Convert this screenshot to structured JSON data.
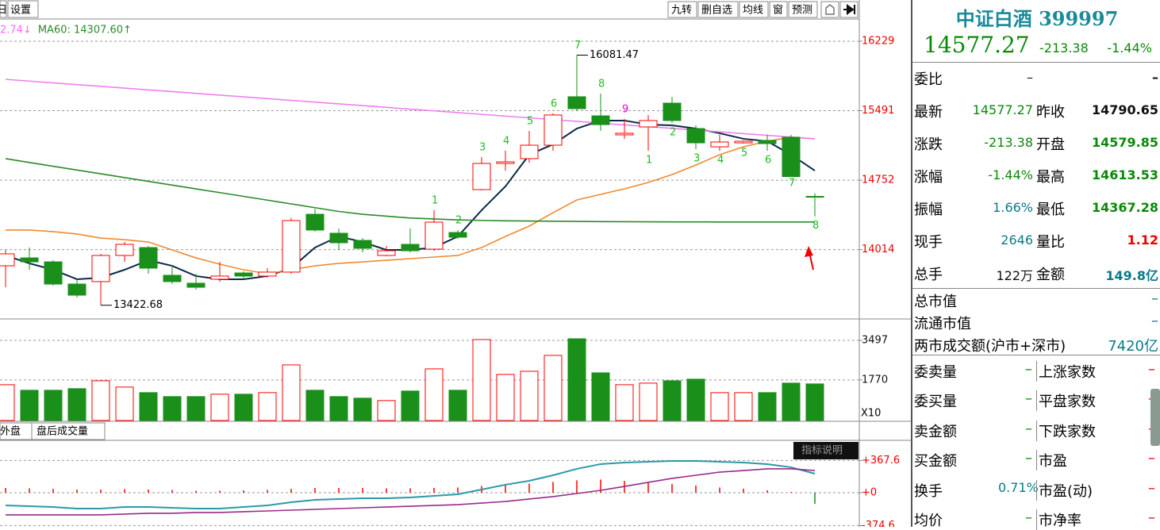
{
  "toolbar": {
    "left": [
      "日",
      "设置"
    ],
    "right": [
      "九转",
      "删自选",
      "均线",
      "窗",
      "预测"
    ]
  },
  "chart_data": [
    {
      "type": "candlestick",
      "legend": [
        {
          "text": "2.74↓",
          "color": "#ff66ff"
        },
        {
          "text": "MA60: 14307.60↑",
          "color": "#2a8a2a"
        }
      ],
      "up_color": "#ff0000",
      "down_color": "#1a8f1a",
      "ylim": [
        13294,
        16465
      ],
      "yticks": [
        16229,
        15491,
        14752,
        14014
      ],
      "grid": true,
      "ohlc": [
        [
          13842,
          14011,
          13614,
          13969
        ],
        [
          13926,
          14036,
          13800,
          13884
        ],
        [
          13884,
          13901,
          13631,
          13648
        ],
        [
          13648,
          13699,
          13505,
          13530
        ],
        [
          13674,
          13969,
          13422.68,
          13952
        ],
        [
          13952,
          14095,
          13884,
          14070
        ],
        [
          14036,
          14053,
          13758,
          13817
        ],
        [
          13741,
          13842,
          13648,
          13674
        ],
        [
          13657,
          13758,
          13589,
          13614
        ],
        [
          13699,
          13884,
          13674,
          13733
        ],
        [
          13766,
          13783,
          13699,
          13733
        ],
        [
          13733,
          13817,
          13716,
          13775
        ],
        [
          13775,
          14348,
          13758,
          14323
        ],
        [
          14390,
          14449,
          14205,
          14222
        ],
        [
          14188,
          14239,
          14011,
          14087
        ],
        [
          14112,
          14137,
          13986,
          14028
        ],
        [
          13952,
          14053,
          13943,
          14002
        ],
        [
          14070,
          14239,
          13986,
          14002
        ],
        [
          14019,
          14433,
          14002,
          14306
        ],
        [
          14196,
          14222,
          14129,
          14146
        ],
        [
          14652,
          14998,
          14643,
          14930
        ],
        [
          14930,
          15065,
          14854,
          14947
        ],
        [
          14981,
          15276,
          14939,
          15124
        ],
        [
          15124,
          15462,
          15065,
          15445
        ],
        [
          15639,
          16081.47,
          15487,
          15512
        ],
        [
          15436,
          15672,
          15276,
          15343
        ],
        [
          15234,
          15403,
          15192,
          15251
        ],
        [
          15318,
          15445,
          15065,
          15386
        ],
        [
          15571,
          15639,
          15360,
          15386
        ],
        [
          15301,
          15335,
          15082,
          15149
        ],
        [
          15107,
          15234,
          15065,
          15158
        ],
        [
          15149,
          15175,
          15141,
          15166
        ],
        [
          15175,
          15234,
          15065,
          15141
        ],
        [
          15209,
          15234,
          14820,
          14790.65
        ],
        [
          14579.85,
          14613.53,
          14367.28,
          14577.27
        ]
      ],
      "series": [
        {
          "color": "#0b2a48",
          "values": [
            13952,
            13868,
            13800,
            13699,
            13716,
            13800,
            13901,
            13842,
            13733,
            13699,
            13699,
            13733,
            13817,
            14036,
            14154,
            14095,
            14011,
            14011,
            14036,
            14154,
            14433,
            14686,
            15023,
            15133,
            15301,
            15386,
            15386,
            15343,
            15335,
            15301,
            15251,
            15192,
            15166,
            15023,
            14854
          ]
        },
        {
          "color": "#f08a30",
          "values": [
            14222,
            14222,
            14205,
            14180,
            14137,
            14120,
            14095,
            14011,
            13926,
            13859,
            13800,
            13758,
            13800,
            13842,
            13868,
            13884,
            13901,
            13918,
            13935,
            13952,
            14036,
            14154,
            14264,
            14407,
            14542,
            14601,
            14660,
            14728,
            14812,
            14913,
            15023,
            15107,
            15166,
            15209,
            15192
          ]
        },
        {
          "color": "#f080f0",
          "values": [
            15824,
            15805,
            15787,
            15768,
            15750,
            15731,
            15712,
            15694,
            15675,
            15656,
            15638,
            15619,
            15600,
            15582,
            15563,
            15545,
            15526,
            15507,
            15489,
            15470,
            15452,
            15433,
            15415,
            15396,
            15378,
            15359,
            15340,
            15322,
            15303,
            15285,
            15266,
            15247,
            15229,
            15210,
            15192
          ]
        },
        {
          "color": "#2a8a2a",
          "values": [
            14981,
            14940,
            14900,
            14860,
            14820,
            14780,
            14740,
            14700,
            14660,
            14620,
            14580,
            14540,
            14500,
            14460,
            14420,
            14390,
            14370,
            14350,
            14340,
            14330,
            14325,
            14320,
            14318,
            14316,
            14314,
            14312,
            14311,
            14310,
            14309,
            14309,
            14308,
            14308,
            14308,
            14308,
            14307.6
          ]
        }
      ],
      "max_label": 16081.47,
      "min_label": 13422.68,
      "td_above": [
        null,
        null,
        null,
        null,
        null,
        null,
        null,
        null,
        null,
        null,
        null,
        null,
        null,
        null,
        null,
        null,
        null,
        null,
        "1",
        "2",
        "3",
        "4",
        "5",
        "6",
        "7",
        "8",
        "9",
        null,
        null,
        null,
        null,
        null,
        null,
        null,
        null
      ],
      "td_above_colors": [
        null,
        null,
        null,
        null,
        null,
        null,
        null,
        null,
        null,
        null,
        null,
        null,
        null,
        null,
        null,
        null,
        null,
        null,
        "#22bb22",
        "#22bb22",
        "#22bb22",
        "#22bb22",
        "#22bb22",
        "#22bb22",
        "#22bb22",
        "#22bb22",
        "#ee00ee",
        null,
        null,
        null,
        null,
        null,
        null,
        null,
        null
      ],
      "td_below": [
        null,
        null,
        null,
        null,
        null,
        null,
        null,
        null,
        null,
        null,
        null,
        null,
        null,
        null,
        null,
        null,
        null,
        null,
        null,
        null,
        null,
        null,
        null,
        null,
        null,
        null,
        null,
        "1",
        "2",
        "3",
        "4",
        "5",
        "6",
        "7",
        "8"
      ],
      "td_below_color": "#22bb22"
    },
    {
      "type": "bar",
      "ylim": [
        0,
        4395
      ],
      "yticks": [
        3497,
        1770
      ],
      "grid": true,
      "unit_note": "X10",
      "values": [
        1561,
        1319,
        1319,
        1389,
        1734,
        1458,
        1216,
        1043,
        1043,
        1147,
        1147,
        1216,
        2425,
        1319,
        1043,
        974,
        870,
        1285,
        2252,
        1319,
        3530,
        2010,
        2148,
        2839,
        3565,
        2079,
        1561,
        1630,
        1734,
        1803,
        1216,
        1216,
        1216,
        1630,
        1596
      ]
    },
    {
      "type": "macd",
      "ylim": [
        -389,
        407
      ],
      "yticks": [
        {
          "value": 367.6,
          "label": "+367.6"
        },
        {
          "value": 0,
          "label": "+0"
        },
        {
          "value": -374.6,
          "label": "-374.6"
        }
      ],
      "grid": true,
      "series": [
        {
          "color": "#2a9aa8",
          "values": [
            -145,
            -154,
            -163,
            -181,
            -181,
            -163,
            -163,
            -172,
            -181,
            -181,
            -163,
            -145,
            -109,
            -81,
            -72,
            -63,
            -63,
            -54,
            -36,
            -18,
            36,
            91,
            136,
            199,
            272,
            326,
            344,
            353,
            362,
            362,
            353,
            344,
            326,
            290,
            217
          ]
        },
        {
          "color": "#9a2a8a",
          "values": [
            -253,
            -253,
            -253,
            -253,
            -253,
            -244,
            -235,
            -235,
            -226,
            -226,
            -217,
            -208,
            -199,
            -190,
            -181,
            -172,
            -163,
            -154,
            -145,
            -136,
            -118,
            -100,
            -72,
            -45,
            -9,
            27,
            72,
            118,
            163,
            199,
            235,
            253,
            272,
            272,
            253
          ]
        }
      ],
      "values": [
        54,
        50,
        45,
        36,
        36,
        41,
        36,
        32,
        23,
        23,
        27,
        32,
        45,
        55,
        55,
        55,
        50,
        50,
        55,
        59,
        77,
        96,
        104,
        122,
        141,
        150,
        136,
        118,
        100,
        82,
        59,
        46,
        27,
        9,
        -127
      ],
      "up_color": "#ff0000",
      "down_color": "#1a8f1a"
    }
  ],
  "tabs": [
    "外盘",
    "盘后成交量"
  ],
  "indicator_button": "指标说明",
  "quote": {
    "title": "中证白酒 399997",
    "price": "14577.27",
    "change": "-213.38",
    "change_pct": "-1.44%",
    "rows": [
      [
        "委比",
        "–",
        "",
        "–"
      ],
      [
        "最新",
        "14577.27",
        "昨收",
        "14790.65"
      ],
      [
        "涨跌",
        "-213.38",
        "开盘",
        "14579.85"
      ],
      [
        "涨幅",
        "-1.44%",
        "最高",
        "14613.53"
      ],
      [
        "振幅",
        "1.66%",
        "最低",
        "14367.28"
      ],
      [
        "现手",
        "2646",
        "量比",
        "1.12"
      ],
      [
        "总手",
        "122万",
        "金额",
        "149.8亿"
      ]
    ],
    "market": [
      [
        "总市值",
        "–"
      ],
      [
        "流通市值",
        "–"
      ],
      [
        "两市成交额(沪市+深市)",
        "7420亿"
      ]
    ],
    "pairs": [
      [
        "委卖量",
        "–",
        "上涨家数",
        "–"
      ],
      [
        "委买量",
        "–",
        "平盘家数",
        "–"
      ],
      [
        "卖金额",
        "–",
        "下跌家数",
        "–"
      ],
      [
        "买金额",
        "–",
        "市盈",
        "–"
      ],
      [
        "换手",
        "0.71%",
        "市盈(动)",
        "–"
      ],
      [
        "均价",
        "–",
        "市净率",
        "–"
      ]
    ]
  }
}
